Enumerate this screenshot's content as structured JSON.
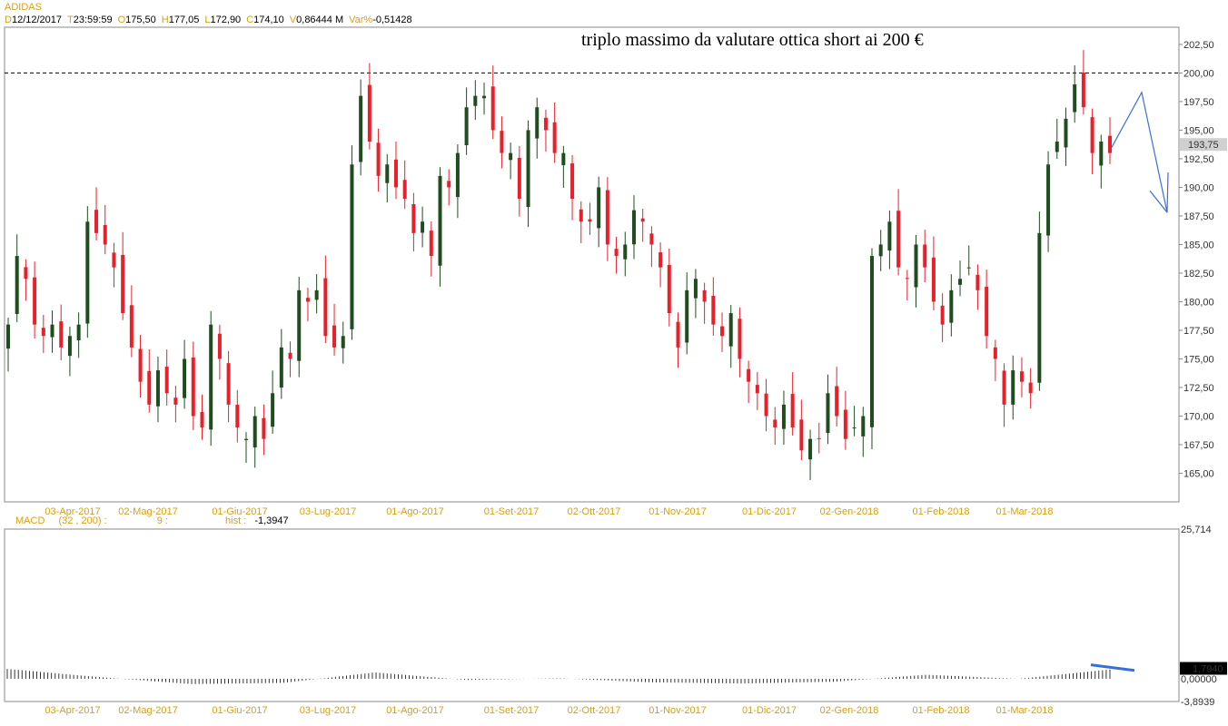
{
  "header": {
    "title": "ADIDAS",
    "fields": [
      {
        "key": "D",
        "value": "12/12/2017"
      },
      {
        "key": "T",
        "value": "23:59:59"
      },
      {
        "key": "O",
        "value": "175,50"
      },
      {
        "key": "H",
        "value": "177,05"
      },
      {
        "key": "L",
        "value": "172,90"
      },
      {
        "key": "C",
        "value": "174,10"
      },
      {
        "key": "V",
        "value": "0,86444 M"
      },
      {
        "key": "Var%",
        "value": "-0,51428"
      }
    ]
  },
  "annotation": "triplo massimo da valutare ottica short ai 200 €",
  "macd_header": {
    "label": "MACD",
    "params": "(32 , 200) :",
    "signal": "9 :",
    "hist_label": "hist :",
    "hist_value": "-1,3947"
  },
  "colors": {
    "up_candle": "#1f4d1f",
    "down_candle": "#e8202a",
    "axis_text": "#d4a017",
    "trend_arrow": "#3a6fd8",
    "resistance_line": "#000000"
  },
  "chart_data": [
    {
      "type": "candlestick",
      "title": "ADIDAS",
      "x_labels": [
        "03-Apr-2017",
        "02-Mag-2017",
        "01-Giu-2017",
        "03-Lug-2017",
        "01-Ago-2017",
        "01-Set-2017",
        "02-Ott-2017",
        "01-Nov-2017",
        "01-Dic-2017",
        "02-Gen-2018",
        "01-Feb-2018",
        "01-Mar-2018"
      ],
      "y_ticks": [
        "165,00",
        "167,50",
        "170,00",
        "172,50",
        "175,00",
        "177,50",
        "180,00",
        "182,50",
        "185,00",
        "187,50",
        "190,00",
        "192,50",
        "195,00",
        "197,50",
        "200,00",
        "202,50"
      ],
      "ylim": [
        162.5,
        204.0
      ],
      "last_price_label": "193,75",
      "resistance_level": 200.0,
      "close_path": [
        178,
        184,
        182,
        178,
        177,
        178,
        176,
        177,
        178,
        187,
        186,
        185,
        183,
        179,
        176,
        173,
        171,
        174,
        172,
        171,
        175,
        170,
        169,
        178,
        175,
        171,
        169,
        168,
        170,
        168,
        172,
        176,
        175,
        181,
        180,
        181,
        177,
        176,
        177,
        192,
        198,
        194,
        191,
        192,
        190,
        189,
        186,
        187,
        184,
        191,
        190,
        193,
        197,
        198,
        198,
        195,
        193,
        193,
        189,
        195,
        197,
        195,
        193,
        193,
        189,
        187,
        187,
        190,
        185,
        184,
        185,
        188,
        187,
        185,
        183,
        179,
        176,
        181,
        182,
        180,
        178,
        177,
        179,
        175,
        173,
        172,
        170,
        169,
        171,
        169,
        167,
        168,
        168,
        172,
        170,
        168,
        169,
        170,
        184,
        185,
        187,
        183,
        182,
        185,
        183,
        180,
        178,
        181,
        182,
        183,
        181,
        177,
        175,
        171,
        174,
        173,
        172,
        186,
        192,
        194,
        196,
        199,
        197,
        193,
        194,
        193
      ],
      "macd_hist": [
        {
          "x": "03-Apr-2017",
          "y": 1.7
        },
        {
          "x": "02-Mag-2017",
          "y": 0.3
        },
        {
          "x": "01-Giu-2017",
          "y": -0.9
        },
        {
          "x": "03-Lug-2017",
          "y": -0.7
        },
        {
          "x": "01-Ago-2017",
          "y": 1.1
        },
        {
          "x": "01-Set-2017",
          "y": -0.2
        },
        {
          "x": "02-Ott-2017",
          "y": 0.1
        },
        {
          "x": "01-Nov-2017",
          "y": -0.6
        },
        {
          "x": "01-Dic-2017",
          "y": -0.8
        },
        {
          "x": "02-Gen-2018",
          "y": -0.5
        },
        {
          "x": "01-Feb-2018",
          "y": 0.7
        },
        {
          "x": "01-Mar-2018",
          "y": 0.0
        },
        {
          "x": "01-Mar-2018",
          "y": 1.6
        }
      ],
      "macd_y_ticks": [
        "25,714",
        "1,7940",
        "0,00000",
        "-3,8939"
      ],
      "macd_ylim": [
        -3.8939,
        25.714
      ]
    }
  ]
}
